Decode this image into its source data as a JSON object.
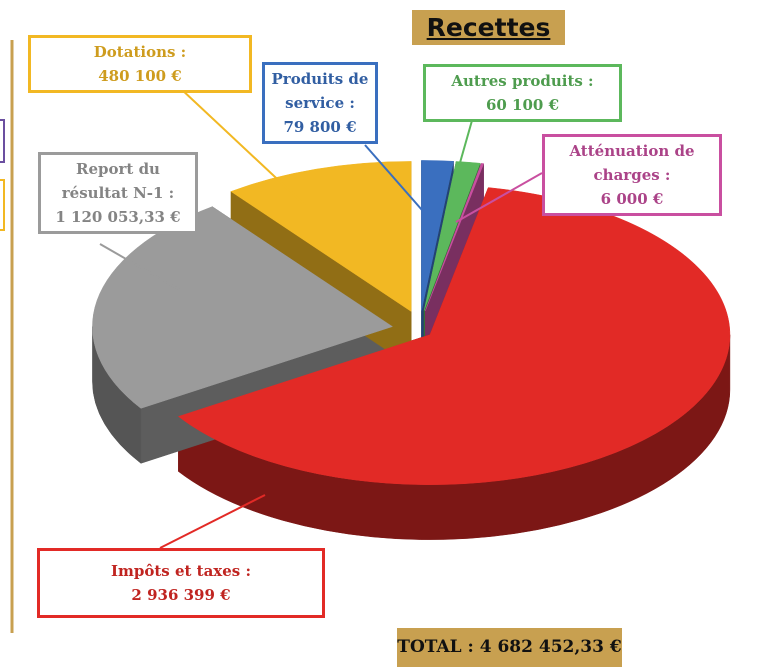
{
  "chart_data": {
    "type": "pie",
    "title": "Recettes",
    "categories": [
      "Produits de service :",
      "Autres produits :",
      "Atténuation de charges :",
      "Impôts et taxes :",
      "Report du résultat N-1 :",
      "Dotations :"
    ],
    "values": [
      79800,
      60100,
      6000,
      2936399,
      1120053.33,
      480100
    ],
    "value_labels": [
      "79 800 €",
      "60 100 €",
      "6 000 €",
      "2 936 399 €",
      "1 120 053,33 €",
      "480 100 €"
    ],
    "colors": [
      "#3a6fbf",
      "#5cb85c",
      "#c94fa0",
      "#e22a26",
      "#9b9b9b",
      "#f2b823"
    ],
    "annotation": "TOTAL : 4 682 452,33 €"
  }
}
